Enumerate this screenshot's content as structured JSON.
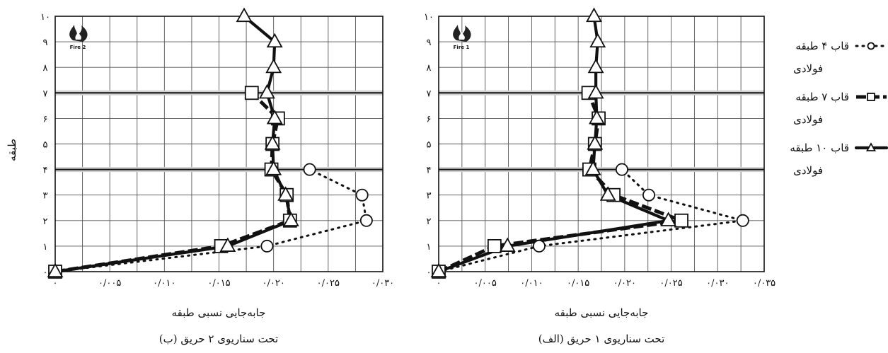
{
  "y_axis_label": "طبقه",
  "legend": [
    {
      "key": "f4",
      "label": "قاب ۴ طبقه فولادی",
      "line1": "قاب ۴ طبقه",
      "line2": "فولادی",
      "marker": "circle",
      "style": "dotted"
    },
    {
      "key": "f7",
      "label": "قاب ۷ طبقه فولادی",
      "line1": "قاب ۷ طبقه",
      "line2": "فولادی",
      "marker": "square",
      "style": "dashed"
    },
    {
      "key": "f10",
      "label": "قاب ۱۰ طبقه فولادی",
      "line1": "قاب ۱۰ طبقه",
      "line2": "فولادی",
      "marker": "triangle",
      "style": "solid"
    }
  ],
  "colors": {
    "line": "#111111",
    "grid": "#555555",
    "background": "#ffffff"
  },
  "chart_data": [
    {
      "id": "fire2",
      "type": "line",
      "orientation": "x-value-y-story",
      "icon": "fire-logo-icon",
      "icon_label": "Fire 2",
      "xlabel": "جابه‌جایی نسبی طبقه",
      "caption": "(ب) تحت سناریوی ۲ حریق",
      "xlim": [
        0,
        0.03
      ],
      "ylim": [
        0,
        10
      ],
      "x_ticks": [
        {
          "v": 0,
          "label": "۰"
        },
        {
          "v": 0.005,
          "label": "۰/۰۰۵"
        },
        {
          "v": 0.01,
          "label": "۰/۰۱۰"
        },
        {
          "v": 0.015,
          "label": "۰/۰۱۵"
        },
        {
          "v": 0.02,
          "label": "۰/۰۲۰"
        },
        {
          "v": 0.025,
          "label": "۰/۰۲۵"
        },
        {
          "v": 0.03,
          "label": "۰/۰۳۰"
        }
      ],
      "y_ticks": [
        "۰",
        "۱",
        "۲",
        "۳",
        "۴",
        "۵",
        "۶",
        "۷",
        "۸",
        "۹",
        "۱۰"
      ],
      "x_minor_step": 0.0025,
      "fire_floor_lines": [
        4,
        7
      ],
      "series": [
        {
          "key": "f4",
          "name": "قاب ۴ طبقه فولادی",
          "points": [
            [
              0,
              0
            ],
            [
              0.0194,
              1
            ],
            [
              0.0285,
              2
            ],
            [
              0.0281,
              3
            ],
            [
              0.0233,
              4
            ]
          ]
        },
        {
          "key": "f7",
          "name": "قاب ۷ طبقه فولادی",
          "points": [
            [
              0,
              0
            ],
            [
              0.0152,
              1
            ],
            [
              0.0215,
              2
            ],
            [
              0.0212,
              3
            ],
            [
              0.0198,
              4
            ],
            [
              0.0199,
              5
            ],
            [
              0.0204,
              6
            ],
            [
              0.018,
              7
            ]
          ]
        },
        {
          "key": "f10",
          "name": "قاب ۱۰ طبقه فولادی",
          "points": [
            [
              0,
              0
            ],
            [
              0.0158,
              1
            ],
            [
              0.0216,
              2
            ],
            [
              0.0211,
              3
            ],
            [
              0.02,
              4
            ],
            [
              0.0199,
              5
            ],
            [
              0.0201,
              6
            ],
            [
              0.0194,
              7
            ],
            [
              0.02,
              8
            ],
            [
              0.0201,
              9
            ],
            [
              0.0173,
              10
            ]
          ]
        }
      ]
    },
    {
      "id": "fire1",
      "type": "line",
      "orientation": "x-value-y-story",
      "icon": "fire-logo-icon",
      "icon_label": "Fire 1",
      "xlabel": "جابه‌جایی نسبی طبقه",
      "caption": "(الف) تحت سناریوی ۱ حریق",
      "xlim": [
        0,
        0.035
      ],
      "ylim": [
        0,
        10
      ],
      "x_ticks": [
        {
          "v": 0,
          "label": "۰"
        },
        {
          "v": 0.005,
          "label": "۰/۰۰۵"
        },
        {
          "v": 0.01,
          "label": "۰/۰۱۰"
        },
        {
          "v": 0.015,
          "label": "۰/۰۱۵"
        },
        {
          "v": 0.02,
          "label": "۰/۰۲۰"
        },
        {
          "v": 0.025,
          "label": "۰/۰۲۵"
        },
        {
          "v": 0.03,
          "label": "۰/۰۳۰"
        },
        {
          "v": 0.035,
          "label": "۰/۰۳۵"
        }
      ],
      "y_ticks": [
        "۰",
        "۱",
        "۲",
        "۳",
        "۴",
        "۵",
        "۶",
        "۷",
        "۸",
        "۹",
        "۱۰"
      ],
      "x_minor_step": 0.0025,
      "fire_floor_lines": [
        4,
        7
      ],
      "series": [
        {
          "key": "f4",
          "name": "قاب ۴ طبقه فولادی",
          "points": [
            [
              0,
              0
            ],
            [
              0.0108,
              1
            ],
            [
              0.0327,
              2
            ],
            [
              0.0226,
              3
            ],
            [
              0.0197,
              4
            ]
          ]
        },
        {
          "key": "f7",
          "name": "قاب ۷ طبقه فولادی",
          "points": [
            [
              0,
              0
            ],
            [
              0.006,
              1
            ],
            [
              0.0261,
              2
            ],
            [
              0.0188,
              3
            ],
            [
              0.0162,
              4
            ],
            [
              0.0168,
              5
            ],
            [
              0.0172,
              6
            ],
            [
              0.0161,
              7
            ]
          ]
        },
        {
          "key": "f10",
          "name": "قاب ۱۰ طبقه فولادی",
          "points": [
            [
              0,
              0
            ],
            [
              0.0074,
              1
            ],
            [
              0.0247,
              2
            ],
            [
              0.0182,
              3
            ],
            [
              0.0166,
              4
            ],
            [
              0.0168,
              5
            ],
            [
              0.017,
              6
            ],
            [
              0.0169,
              7
            ],
            [
              0.0169,
              8
            ],
            [
              0.0171,
              9
            ],
            [
              0.0167,
              10
            ]
          ]
        }
      ]
    }
  ]
}
